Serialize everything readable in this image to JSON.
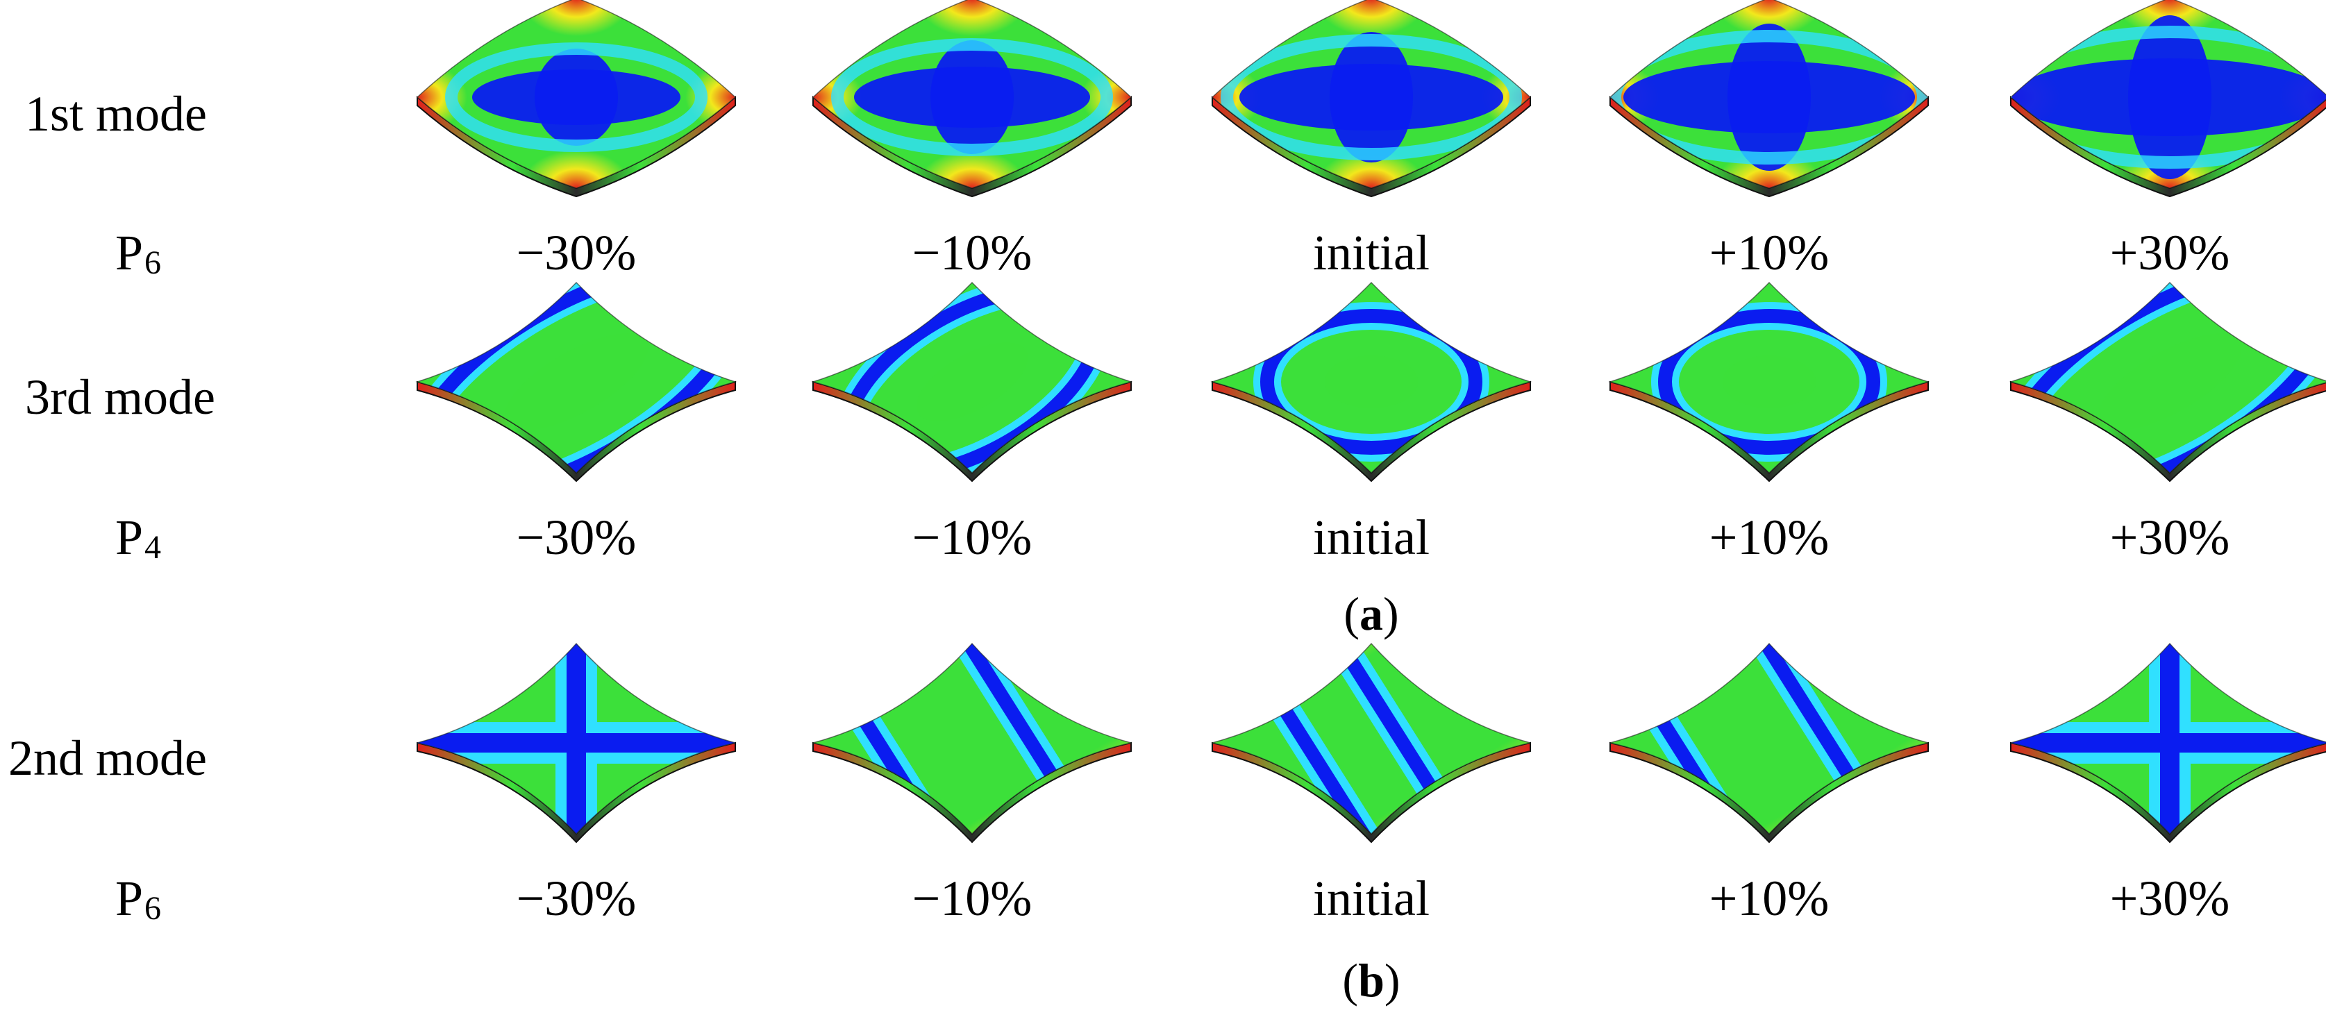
{
  "panel_a": {
    "caption_letter": "a",
    "rows": [
      {
        "mode_label": "1st mode",
        "param_letter": "P",
        "param_index": "6",
        "levels": [
          "−30%",
          "−10%",
          "initial",
          "+10%",
          "+30%"
        ]
      },
      {
        "mode_label": "3rd mode",
        "param_letter": "P",
        "param_index": "4",
        "levels": [
          "−30%",
          "−10%",
          "initial",
          "+10%",
          "+30%"
        ]
      }
    ]
  },
  "panel_b": {
    "caption_letter": "b",
    "rows": [
      {
        "mode_label": "2nd mode",
        "param_letter": "P",
        "param_index": "6",
        "levels": [
          "−30%",
          "−10%",
          "initial",
          "+10%",
          "+30%"
        ]
      }
    ]
  },
  "colors": {
    "low": "#0a1cf0",
    "mid_low": "#30e0ff",
    "mid": "#3ce03a",
    "mid_high": "#f2e81c",
    "high": "#e0201c",
    "edge": "#2a2a2a"
  }
}
